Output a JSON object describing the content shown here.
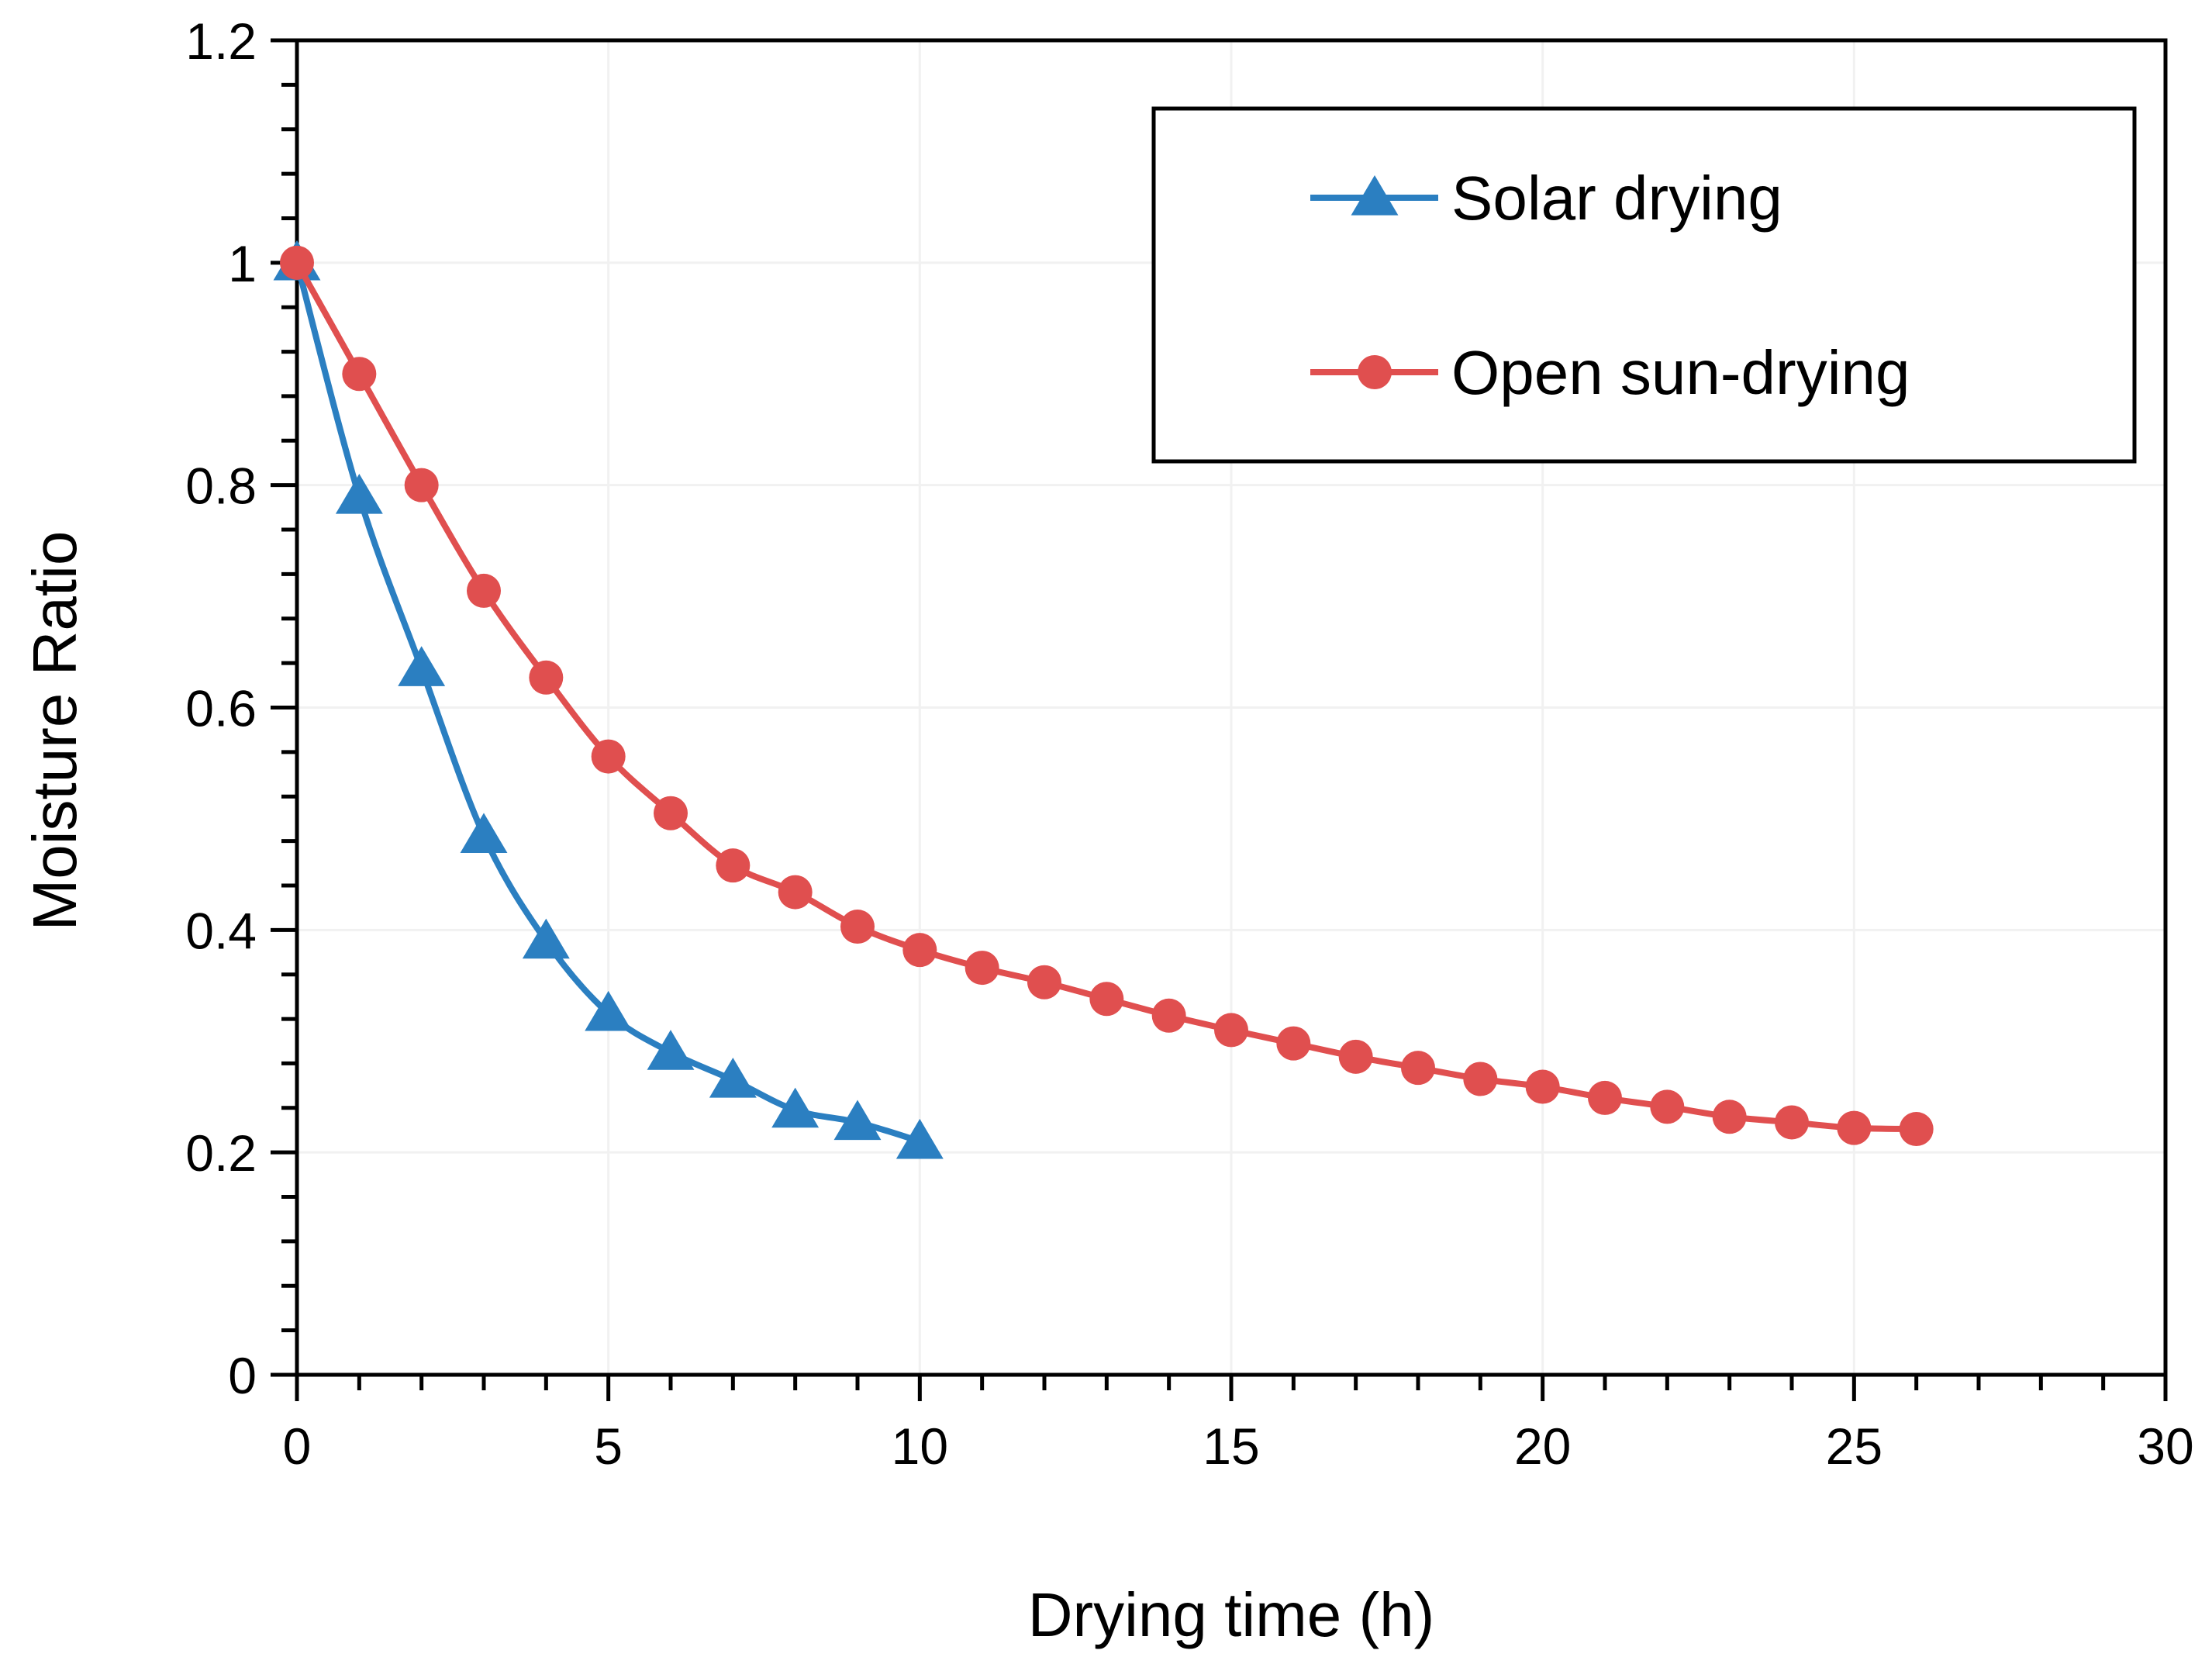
{
  "chart_data": {
    "type": "line",
    "title": "",
    "xlabel": "Drying time (h)",
    "ylabel": "Moisture Ratio",
    "xlim": [
      0,
      30
    ],
    "ylim": [
      0,
      1.2
    ],
    "x_major_ticks": [
      0,
      5,
      10,
      15,
      20,
      25,
      30
    ],
    "x_tick_labels": [
      "0",
      "5",
      "10",
      "15",
      "20",
      "25",
      "30"
    ],
    "y_major_ticks": [
      0,
      0.2,
      0.4,
      0.6,
      0.8,
      1.0,
      1.2
    ],
    "y_tick_labels": [
      "0",
      "0.2",
      "0.4",
      "0.6",
      "0.8",
      "1",
      "1.2"
    ],
    "x_minor_step": 1,
    "y_minor_step": 0.04,
    "grid": true,
    "legend_position": "top-right",
    "series": [
      {
        "name": "Solar drying",
        "marker": "triangle",
        "color": "#2b7fc1",
        "x": [
          0,
          1,
          2,
          3,
          4,
          5,
          6,
          7,
          8,
          9,
          10
        ],
        "y": [
          1.0,
          0.79,
          0.635,
          0.485,
          0.39,
          0.325,
          0.29,
          0.265,
          0.238,
          0.227,
          0.21
        ]
      },
      {
        "name": "Open sun-drying",
        "marker": "circle",
        "color": "#e04f4f",
        "x": [
          0,
          1,
          2,
          3,
          4,
          5,
          6,
          7,
          8,
          9,
          10,
          11,
          12,
          13,
          14,
          15,
          16,
          17,
          18,
          19,
          20,
          21,
          22,
          23,
          24,
          25,
          26
        ],
        "y": [
          1.0,
          0.9,
          0.8,
          0.705,
          0.627,
          0.556,
          0.505,
          0.458,
          0.434,
          0.403,
          0.382,
          0.366,
          0.353,
          0.338,
          0.323,
          0.31,
          0.298,
          0.286,
          0.276,
          0.266,
          0.259,
          0.249,
          0.241,
          0.232,
          0.227,
          0.222,
          0.221
        ]
      }
    ]
  }
}
